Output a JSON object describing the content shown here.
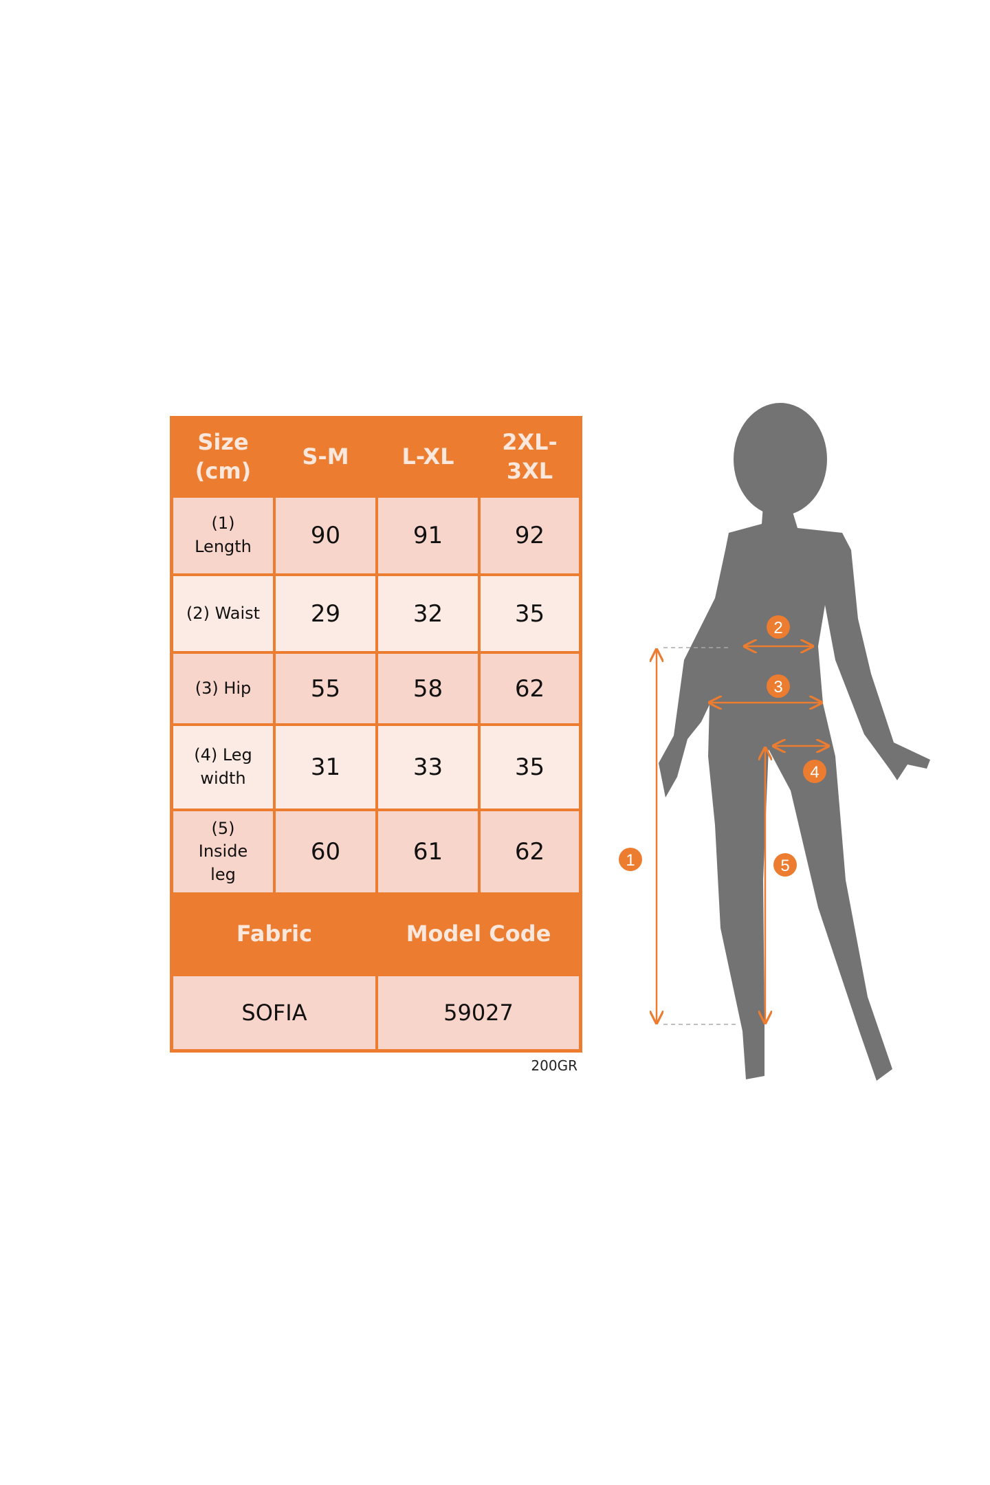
{
  "table": {
    "header": [
      "Size (cm)",
      "S-M",
      "L-XL",
      "2XL-3XL"
    ],
    "header_lines": [
      [
        "Size",
        "(cm)"
      ],
      [
        "S-M"
      ],
      [
        "L-XL"
      ],
      [
        "2XL-",
        "3XL"
      ]
    ],
    "rows": [
      {
        "label_lines": [
          "(1)",
          "Length"
        ],
        "values": [
          "90",
          "91",
          "92"
        ]
      },
      {
        "label_lines": [
          "(2) Waist"
        ],
        "values": [
          "29",
          "32",
          "35"
        ]
      },
      {
        "label_lines": [
          "(3) Hip"
        ],
        "values": [
          "55",
          "58",
          "62"
        ]
      },
      {
        "label_lines": [
          "(4) Leg",
          "width"
        ],
        "values": [
          "31",
          "33",
          "35"
        ]
      },
      {
        "label_lines": [
          "(5)",
          "Inside",
          "leg"
        ],
        "values": [
          "60",
          "61",
          "62"
        ]
      }
    ],
    "footer_header": [
      "Fabric",
      "Model Code"
    ],
    "footer_values": [
      "SOFIA",
      "59027"
    ]
  },
  "note": "200GR",
  "figure": {
    "markers": [
      "1",
      "2",
      "3",
      "4",
      "5"
    ],
    "accent_color": "#ec7c30",
    "silhouette_color": "#737373"
  }
}
